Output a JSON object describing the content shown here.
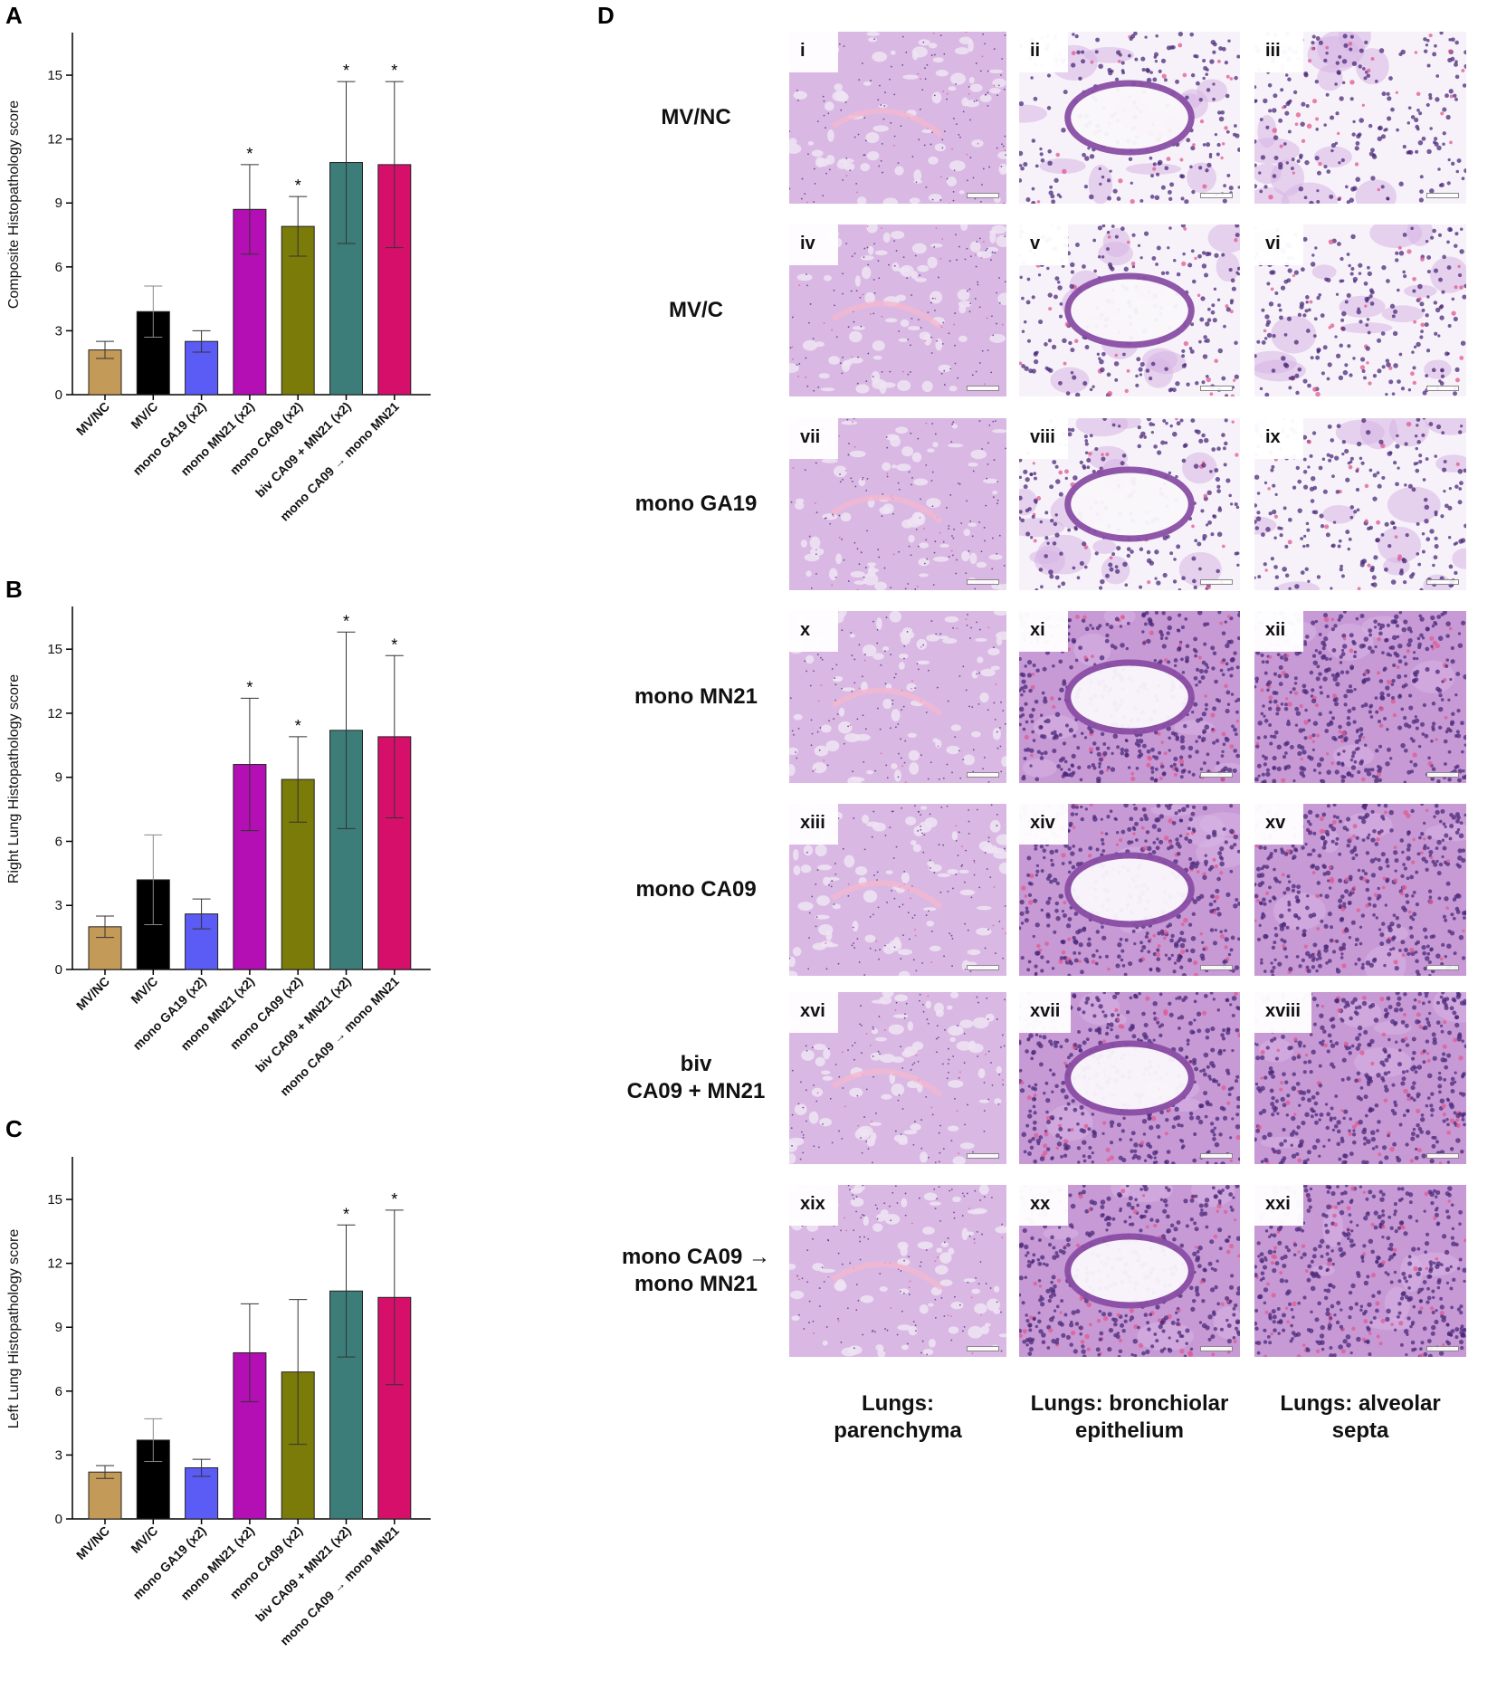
{
  "panels": {
    "A": "A",
    "B": "B",
    "C": "C",
    "D": "D"
  },
  "chart_data": [
    {
      "id": "A",
      "type": "bar",
      "ylabel": "Composite Histopathology score",
      "ylim": [
        0,
        17
      ],
      "yticks": [
        0,
        3,
        6,
        9,
        12,
        15
      ],
      "categories": [
        "MV/NC",
        "MV/C",
        "mono GA19 (x2)",
        "mono MN21 (x2)",
        "mono CA09 (x2)",
        "biv CA09 + MN21 (x2)",
        "mono CA09 → mono MN21"
      ],
      "values": [
        2.1,
        3.9,
        2.5,
        8.7,
        7.9,
        10.9,
        10.8
      ],
      "errors": [
        0.4,
        1.2,
        0.5,
        2.1,
        1.4,
        3.8,
        3.9
      ],
      "significance": [
        "",
        "",
        "",
        "*",
        "*",
        "*",
        "*"
      ],
      "colors": [
        "#c49a58",
        "#000000",
        "#5b5bf5",
        "#b40fb4",
        "#7b7b0a",
        "#3c7d79",
        "#d6106a"
      ]
    },
    {
      "id": "B",
      "type": "bar",
      "ylabel": "Right Lung Histopathology score",
      "ylim": [
        0,
        17
      ],
      "yticks": [
        0,
        3,
        6,
        9,
        12,
        15
      ],
      "categories": [
        "MV/NC",
        "MV/C",
        "mono GA19 (x2)",
        "mono MN21 (x2)",
        "mono CA09 (x2)",
        "biv CA09 + MN21 (x2)",
        "mono CA09 → mono MN21"
      ],
      "values": [
        2.0,
        4.2,
        2.6,
        9.6,
        8.9,
        11.2,
        10.9
      ],
      "errors": [
        0.5,
        2.1,
        0.7,
        3.1,
        2.0,
        4.6,
        3.8
      ],
      "significance": [
        "",
        "",
        "",
        "*",
        "*",
        "*",
        "*"
      ],
      "colors": [
        "#c49a58",
        "#000000",
        "#5b5bf5",
        "#b40fb4",
        "#7b7b0a",
        "#3c7d79",
        "#d6106a"
      ]
    },
    {
      "id": "C",
      "type": "bar",
      "ylabel": "Left Lung Histopathology score",
      "ylim": [
        0,
        17
      ],
      "yticks": [
        0,
        3,
        6,
        9,
        12,
        15
      ],
      "categories": [
        "MV/NC",
        "MV/C",
        "mono GA19 (x2)",
        "mono MN21 (x2)",
        "mono CA09 (x2)",
        "biv CA09 + MN21 (x2)",
        "mono CA09 → mono MN21"
      ],
      "values": [
        2.2,
        3.7,
        2.4,
        7.8,
        6.9,
        10.7,
        10.4
      ],
      "errors": [
        0.3,
        1.0,
        0.4,
        2.3,
        3.4,
        3.1,
        4.1
      ],
      "significance": [
        "",
        "",
        "",
        "",
        "",
        "*",
        "*"
      ],
      "colors": [
        "#c49a58",
        "#000000",
        "#5b5bf5",
        "#b40fb4",
        "#7b7b0a",
        "#3c7d79",
        "#d6106a"
      ]
    }
  ],
  "micrographs": {
    "rows": [
      {
        "label": [
          "MV/NC"
        ],
        "tiles": [
          "i",
          "ii",
          "iii"
        ]
      },
      {
        "label": [
          "MV/C"
        ],
        "tiles": [
          "iv",
          "v",
          "vi"
        ]
      },
      {
        "label": [
          "mono GA19"
        ],
        "tiles": [
          "vii",
          "viii",
          "ix"
        ]
      },
      {
        "label": [
          "mono MN21"
        ],
        "tiles": [
          "x",
          "xi",
          "xii"
        ]
      },
      {
        "label": [
          "mono CA09"
        ],
        "tiles": [
          "xiii",
          "xiv",
          "xv"
        ]
      },
      {
        "label": [
          "biv",
          "CA09 + MN21"
        ],
        "tiles": [
          "xvi",
          "xvii",
          "xviii"
        ]
      },
      {
        "label": [
          "mono CA09 →",
          "mono MN21"
        ],
        "tiles": [
          "xix",
          "xx",
          "xxi"
        ]
      }
    ],
    "columns": [
      [
        "Lungs:",
        "parenchyma"
      ],
      [
        "Lungs: bronchiolar",
        "epithelium"
      ],
      [
        "Lungs: alveolar",
        "septa"
      ]
    ],
    "stain_colors": {
      "background": "#f4ecf6",
      "tissue_light": "#d9b8e4",
      "tissue_dense": "#8a4fa6",
      "nuclei": "#4b2a7a",
      "eosin": "#e05a8f",
      "airspace": "#f7f2f9"
    }
  }
}
